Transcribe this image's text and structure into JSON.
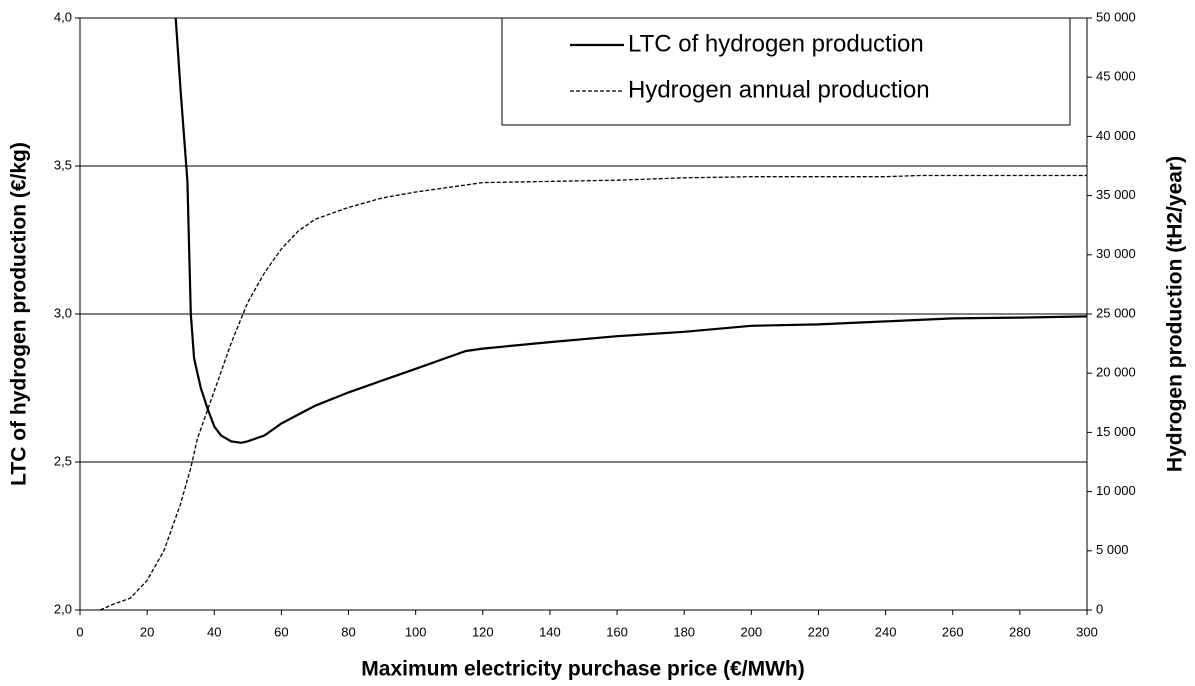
{
  "chart_data": {
    "type": "line",
    "xlabel": "Maximum electricity purchase price (€/MWh)",
    "ylabel": "LTC of hydrogen production (€/kg)",
    "y2label": "Hydrogen production (tH2/year)",
    "xlim": [
      0,
      300
    ],
    "xticks": [
      0,
      20,
      40,
      60,
      80,
      100,
      120,
      140,
      160,
      180,
      200,
      220,
      240,
      260,
      280,
      300
    ],
    "ylim": [
      2,
      4
    ],
    "yticks": [
      {
        "value": 2,
        "label": "2,0"
      },
      {
        "value": 2.5,
        "label": "2,5"
      },
      {
        "value": 3,
        "label": "3,0"
      },
      {
        "value": 3.5,
        "label": "3,5"
      },
      {
        "value": 4,
        "label": "4,0"
      }
    ],
    "y2lim": [
      0,
      50000
    ],
    "y2ticks": [
      0,
      {
        "value": 5000,
        "label": "5 000"
      },
      {
        "value": 10000,
        "label": "10 000"
      },
      {
        "value": 15000,
        "label": "15 000"
      },
      {
        "value": 20000,
        "label": "20 000"
      },
      {
        "value": 25000,
        "label": "25 000"
      },
      {
        "value": 30000,
        "label": "30 000"
      },
      {
        "value": 35000,
        "label": "35 000"
      },
      {
        "value": 40000,
        "label": "40 000"
      },
      {
        "value": 45000,
        "label": "45 000"
      },
      {
        "value": 50000,
        "label": "50 000"
      }
    ],
    "grid": true,
    "legend": "upper right",
    "series": [
      {
        "name": "LTC of hydrogen production",
        "color": "#000000",
        "linestyle": "solid",
        "x": [
          28.5,
          30,
          32,
          33,
          34,
          36,
          38,
          40,
          42,
          45,
          48,
          50,
          55,
          60,
          70,
          80,
          90,
          100,
          110,
          115,
          120,
          140,
          160,
          180,
          200,
          220,
          240,
          260,
          280,
          300
        ],
        "values": [
          4.0,
          3.75,
          3.45,
          3.0,
          2.85,
          2.75,
          2.68,
          2.62,
          2.59,
          2.57,
          2.565,
          2.57,
          2.59,
          2.63,
          2.69,
          2.735,
          2.775,
          2.815,
          2.855,
          2.875,
          2.883,
          2.905,
          2.925,
          2.94,
          2.96,
          2.965,
          2.975,
          2.985,
          2.988,
          2.992
        ]
      },
      {
        "name": "Hydrogen annual production",
        "color": "#000000",
        "linestyle": "dashed",
        "axis": "y2",
        "x": [
          6,
          10,
          15,
          20,
          25,
          30,
          33,
          35,
          40,
          45,
          50,
          55,
          60,
          65,
          70,
          80,
          90,
          100,
          110,
          120,
          140,
          160,
          180,
          200,
          240,
          250,
          300
        ],
        "values": [
          0,
          500,
          1000,
          2500,
          5000,
          9000,
          12000,
          14500,
          18500,
          22500,
          26000,
          28500,
          30500,
          32000,
          33000,
          34000,
          34800,
          35300,
          35700,
          36100,
          36200,
          36300,
          36500,
          36600,
          36600,
          36700,
          36700
        ]
      }
    ]
  }
}
